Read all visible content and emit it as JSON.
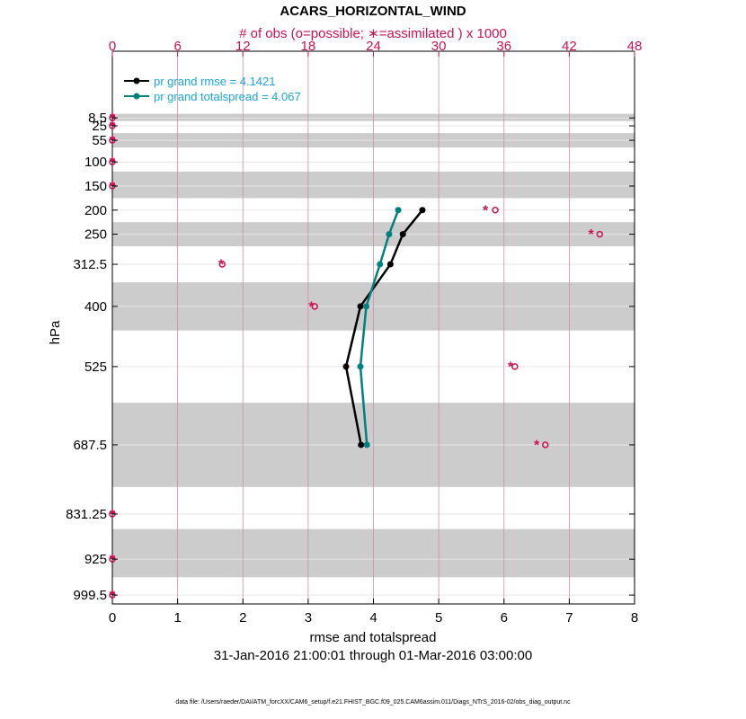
{
  "chart_data": {
    "type": "line",
    "title": "ACARS_HORIZONTAL_WIND",
    "top_axis_label": "# of obs (o=possible; ∗=assimilated ) x 1000",
    "xlabel": "rmse and totalspread",
    "date_range": "31-Jan-2016 21:00:01 through 01-Mar-2016 03:00:00",
    "ylabel": "hPa",
    "xlim": [
      0,
      8
    ],
    "top_xlim": [
      0,
      48
    ],
    "x_ticks": [
      "0",
      "1",
      "2",
      "3",
      "4",
      "5",
      "6",
      "7",
      "8"
    ],
    "top_ticks": [
      "0",
      "6",
      "12",
      "18",
      "24",
      "30",
      "36",
      "42",
      "48"
    ],
    "levels": [
      8.5,
      25,
      55,
      100,
      150,
      200,
      250,
      312.5,
      400,
      525,
      687.5,
      831.25,
      925,
      999.5
    ],
    "level_labels": [
      "8.5",
      "25",
      "55",
      "100",
      "150",
      "200",
      "250",
      "312.5",
      "400",
      "525",
      "687.5",
      "831.25",
      "925",
      "999.5"
    ],
    "bands": [
      [
        0,
        15
      ],
      [
        40,
        70
      ],
      [
        120,
        175
      ],
      [
        225,
        275
      ],
      [
        350,
        450
      ],
      [
        600,
        775
      ],
      [
        862.5,
        962.5
      ]
    ],
    "series": [
      {
        "name": "pr grand rmse",
        "legend": "pr grand rmse = 4.1421",
        "color": "#000000",
        "levels": [
          200,
          250,
          312.5,
          400,
          525,
          687.5
        ],
        "values": [
          4.75,
          4.45,
          4.26,
          3.8,
          3.58,
          3.81
        ]
      },
      {
        "name": "pr grand totalspread",
        "legend": "pr grand totalspread = 4.067",
        "color": "#00807f",
        "levels": [
          200,
          250,
          312.5,
          400,
          525,
          687.5
        ],
        "values": [
          4.38,
          4.24,
          4.1,
          3.89,
          3.8,
          3.9
        ]
      }
    ],
    "obs_counts_thousands": {
      "levels": [
        8.5,
        25,
        55,
        100,
        150,
        200,
        250,
        312.5,
        400,
        525,
        687.5,
        831.25,
        925,
        999.5
      ],
      "possible": [
        0,
        0,
        0,
        0,
        0,
        35.2,
        44.8,
        10.1,
        18.6,
        37.0,
        39.8,
        0,
        0,
        0
      ],
      "assimilated": [
        0,
        0,
        0,
        0,
        0,
        34.3,
        44.0,
        10.0,
        18.3,
        36.6,
        39.0,
        0,
        0,
        0
      ]
    },
    "colors": {
      "obs": "#cc1155",
      "grid": "#d58aa6",
      "band": "#cccccc",
      "legend_text": "#1aa6d9"
    }
  },
  "footer": "data file: /Users/raeder/DAI/ATM_forcXX/CAM6_setup/f.e21.FHIST_BGC.f09_025.CAM6assim.011/Diags_NTrS_2016-02/obs_diag_output.nc"
}
